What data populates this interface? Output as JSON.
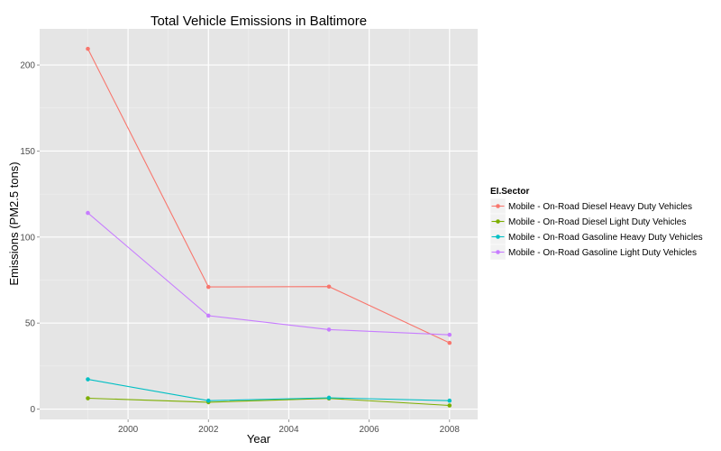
{
  "chart_data": {
    "type": "line",
    "title": "Total Vehicle Emissions in Baltimore",
    "xlabel": "Year",
    "ylabel": "Emissions (PM2.5 tons)",
    "x": [
      1999,
      2002,
      2005,
      2008
    ],
    "xlim": [
      1997.8,
      2008.7
    ],
    "ylim": [
      -6,
      221
    ],
    "x_ticks": [
      2000,
      2002,
      2004,
      2006,
      2008
    ],
    "y_ticks": [
      0,
      50,
      100,
      150,
      200
    ],
    "grid": true,
    "panel_background": "#e5e5e5",
    "legend": {
      "title": "EI.Sector",
      "position": "right"
    },
    "series": [
      {
        "name": "Mobile - On-Road Diesel Heavy Duty Vehicles",
        "color": "#F8766D",
        "values": [
          209.4,
          71.0,
          71.2,
          38.5
        ]
      },
      {
        "name": "Mobile - On-Road Diesel Light Duty Vehicles",
        "color": "#7CAE00",
        "values": [
          6.3,
          4.0,
          6.2,
          2.1
        ]
      },
      {
        "name": "Mobile - On-Road Gasoline Heavy Duty Vehicles",
        "color": "#00BFC4",
        "values": [
          17.3,
          4.9,
          6.6,
          4.9
        ]
      },
      {
        "name": "Mobile - On-Road Gasoline Light Duty Vehicles",
        "color": "#C77CFF",
        "values": [
          114.0,
          54.3,
          46.2,
          43.2
        ]
      }
    ]
  }
}
